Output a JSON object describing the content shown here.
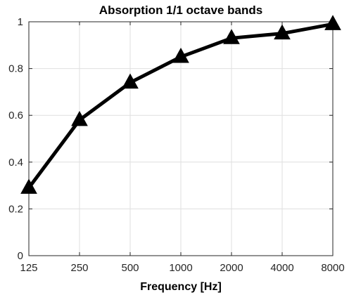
{
  "chart_data": {
    "type": "line",
    "title": "Absorption 1/1 octave bands",
    "xlabel": "Frequency [Hz]",
    "ylabel": "",
    "categories": [
      "125",
      "250",
      "500",
      "1000",
      "2000",
      "4000",
      "8000"
    ],
    "series": [
      {
        "values": [
          0.29,
          0.58,
          0.74,
          0.85,
          0.93,
          0.95,
          0.99
        ],
        "color": "#000000",
        "marker": "triangle"
      }
    ],
    "ylim": [
      0,
      1
    ],
    "yticks": [
      "0",
      "0.2",
      "0.4",
      "0.6",
      "0.8",
      "1"
    ],
    "grid": true,
    "legend": "none"
  }
}
